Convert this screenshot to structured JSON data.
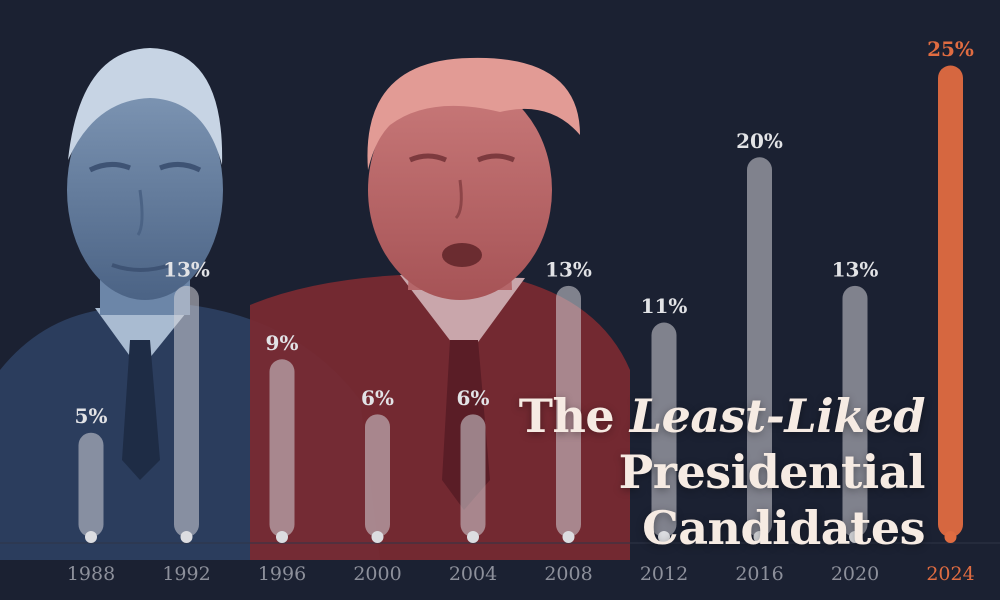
{
  "colors": {
    "background": "#1b2132",
    "bar": "#d3d4d8",
    "highlight": "#e06c41",
    "label": "#e2e3e6",
    "axis_label": "#8d909b"
  },
  "title": {
    "prefix": "The ",
    "emphasis": "Least-Liked",
    "line2": "Presidential Candidates"
  },
  "images": {
    "left_portrait": "biden-portrait-blue-tint",
    "right_portrait": "trump-portrait-red-tint"
  },
  "chart_data": {
    "type": "bar",
    "categories": [
      "1988",
      "1992",
      "1996",
      "2000",
      "2004",
      "2008",
      "2012",
      "2016",
      "2020",
      "2024"
    ],
    "values": [
      5,
      13,
      9,
      6,
      6,
      13,
      11,
      20,
      13,
      25
    ],
    "labels": [
      "5%",
      "13%",
      "9%",
      "6%",
      "6%",
      "13%",
      "11%",
      "20%",
      "13%",
      "25%"
    ],
    "highlight": "2024",
    "ylim": [
      0,
      25
    ],
    "grid": false,
    "title": "The Least-Liked Presidential Candidates",
    "xlabel": "",
    "ylabel": ""
  }
}
